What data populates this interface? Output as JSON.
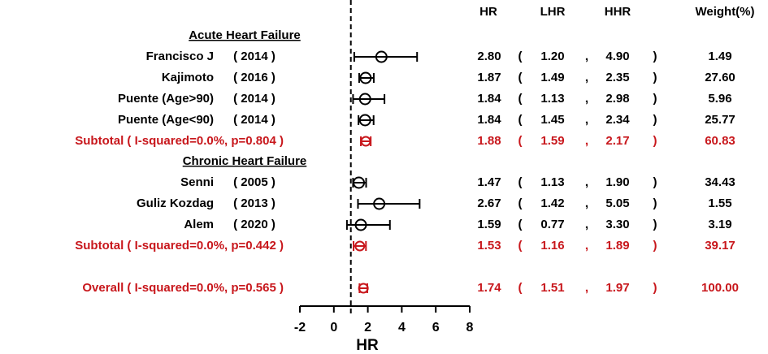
{
  "chart_data": {
    "type": "forest",
    "columns": [
      "HR",
      "LHR",
      "HHR",
      "Weight(%)"
    ],
    "ci_format": [
      "(",
      ",",
      ")"
    ],
    "xlabel": "HR",
    "xlim": [
      -2,
      8
    ],
    "xticks": [
      -2,
      0,
      2,
      4,
      6,
      8
    ],
    "ref_line": 1,
    "colors": {
      "study": "#000000",
      "subtotal": "#c8171c"
    },
    "rows": [
      {
        "kind": "header",
        "label": "Acute Heart Failure"
      },
      {
        "kind": "study",
        "label": "Francisco J",
        "year": "( 2014 )",
        "values": [
          2.8,
          1.2,
          4.9
        ],
        "value_labels": [
          "2.80",
          "1.20",
          "4.90"
        ],
        "weight": "1.49"
      },
      {
        "kind": "study",
        "label": "Kajimoto",
        "year": "( 2016 )",
        "values": [
          1.87,
          1.49,
          2.35
        ],
        "value_labels": [
          "1.87",
          "1.49",
          "2.35"
        ],
        "weight": "27.60"
      },
      {
        "kind": "study",
        "label": "Puente (Age>90)",
        "year": "( 2014 )",
        "values": [
          1.84,
          1.13,
          2.98
        ],
        "value_labels": [
          "1.84",
          "1.13",
          "2.98"
        ],
        "weight": "5.96"
      },
      {
        "kind": "study",
        "label": "Puente (Age<90)",
        "year": "( 2014 )",
        "values": [
          1.84,
          1.45,
          2.34
        ],
        "value_labels": [
          "1.84",
          "1.45",
          "2.34"
        ],
        "weight": "25.77"
      },
      {
        "kind": "subtotal",
        "label": "Subtotal ( I-squared=0.0%, p=0.804 )",
        "values": [
          1.88,
          1.59,
          2.17
        ],
        "value_labels": [
          "1.88",
          "1.59",
          "2.17"
        ],
        "weight": "60.83"
      },
      {
        "kind": "header",
        "label": "Chronic Heart Failure"
      },
      {
        "kind": "study",
        "label": "Senni",
        "year": "( 2005 )",
        "values": [
          1.47,
          1.13,
          1.9
        ],
        "value_labels": [
          "1.47",
          "1.13",
          "1.90"
        ],
        "weight": "34.43"
      },
      {
        "kind": "study",
        "label": "Guliz Kozdag",
        "year": "( 2013 )",
        "values": [
          2.67,
          1.42,
          5.05
        ],
        "value_labels": [
          "2.67",
          "1.42",
          "5.05"
        ],
        "weight": "1.55"
      },
      {
        "kind": "study",
        "label": "Alem",
        "year": "( 2020 )",
        "values": [
          1.59,
          0.77,
          3.3
        ],
        "value_labels": [
          "1.59",
          "0.77",
          "3.30"
        ],
        "weight": "3.19"
      },
      {
        "kind": "subtotal",
        "label": "Subtotal ( I-squared=0.0%, p=0.442 )",
        "values": [
          1.53,
          1.16,
          1.89
        ],
        "value_labels": [
          "1.53",
          "1.16",
          "1.89"
        ],
        "weight": "39.17"
      },
      {
        "kind": "subtotal",
        "label": "Overall ( I-squared=0.0%, p=0.565 )",
        "values": [
          1.74,
          1.51,
          1.97
        ],
        "value_labels": [
          "1.74",
          "1.51",
          "1.97"
        ],
        "weight": "100.00"
      }
    ]
  }
}
